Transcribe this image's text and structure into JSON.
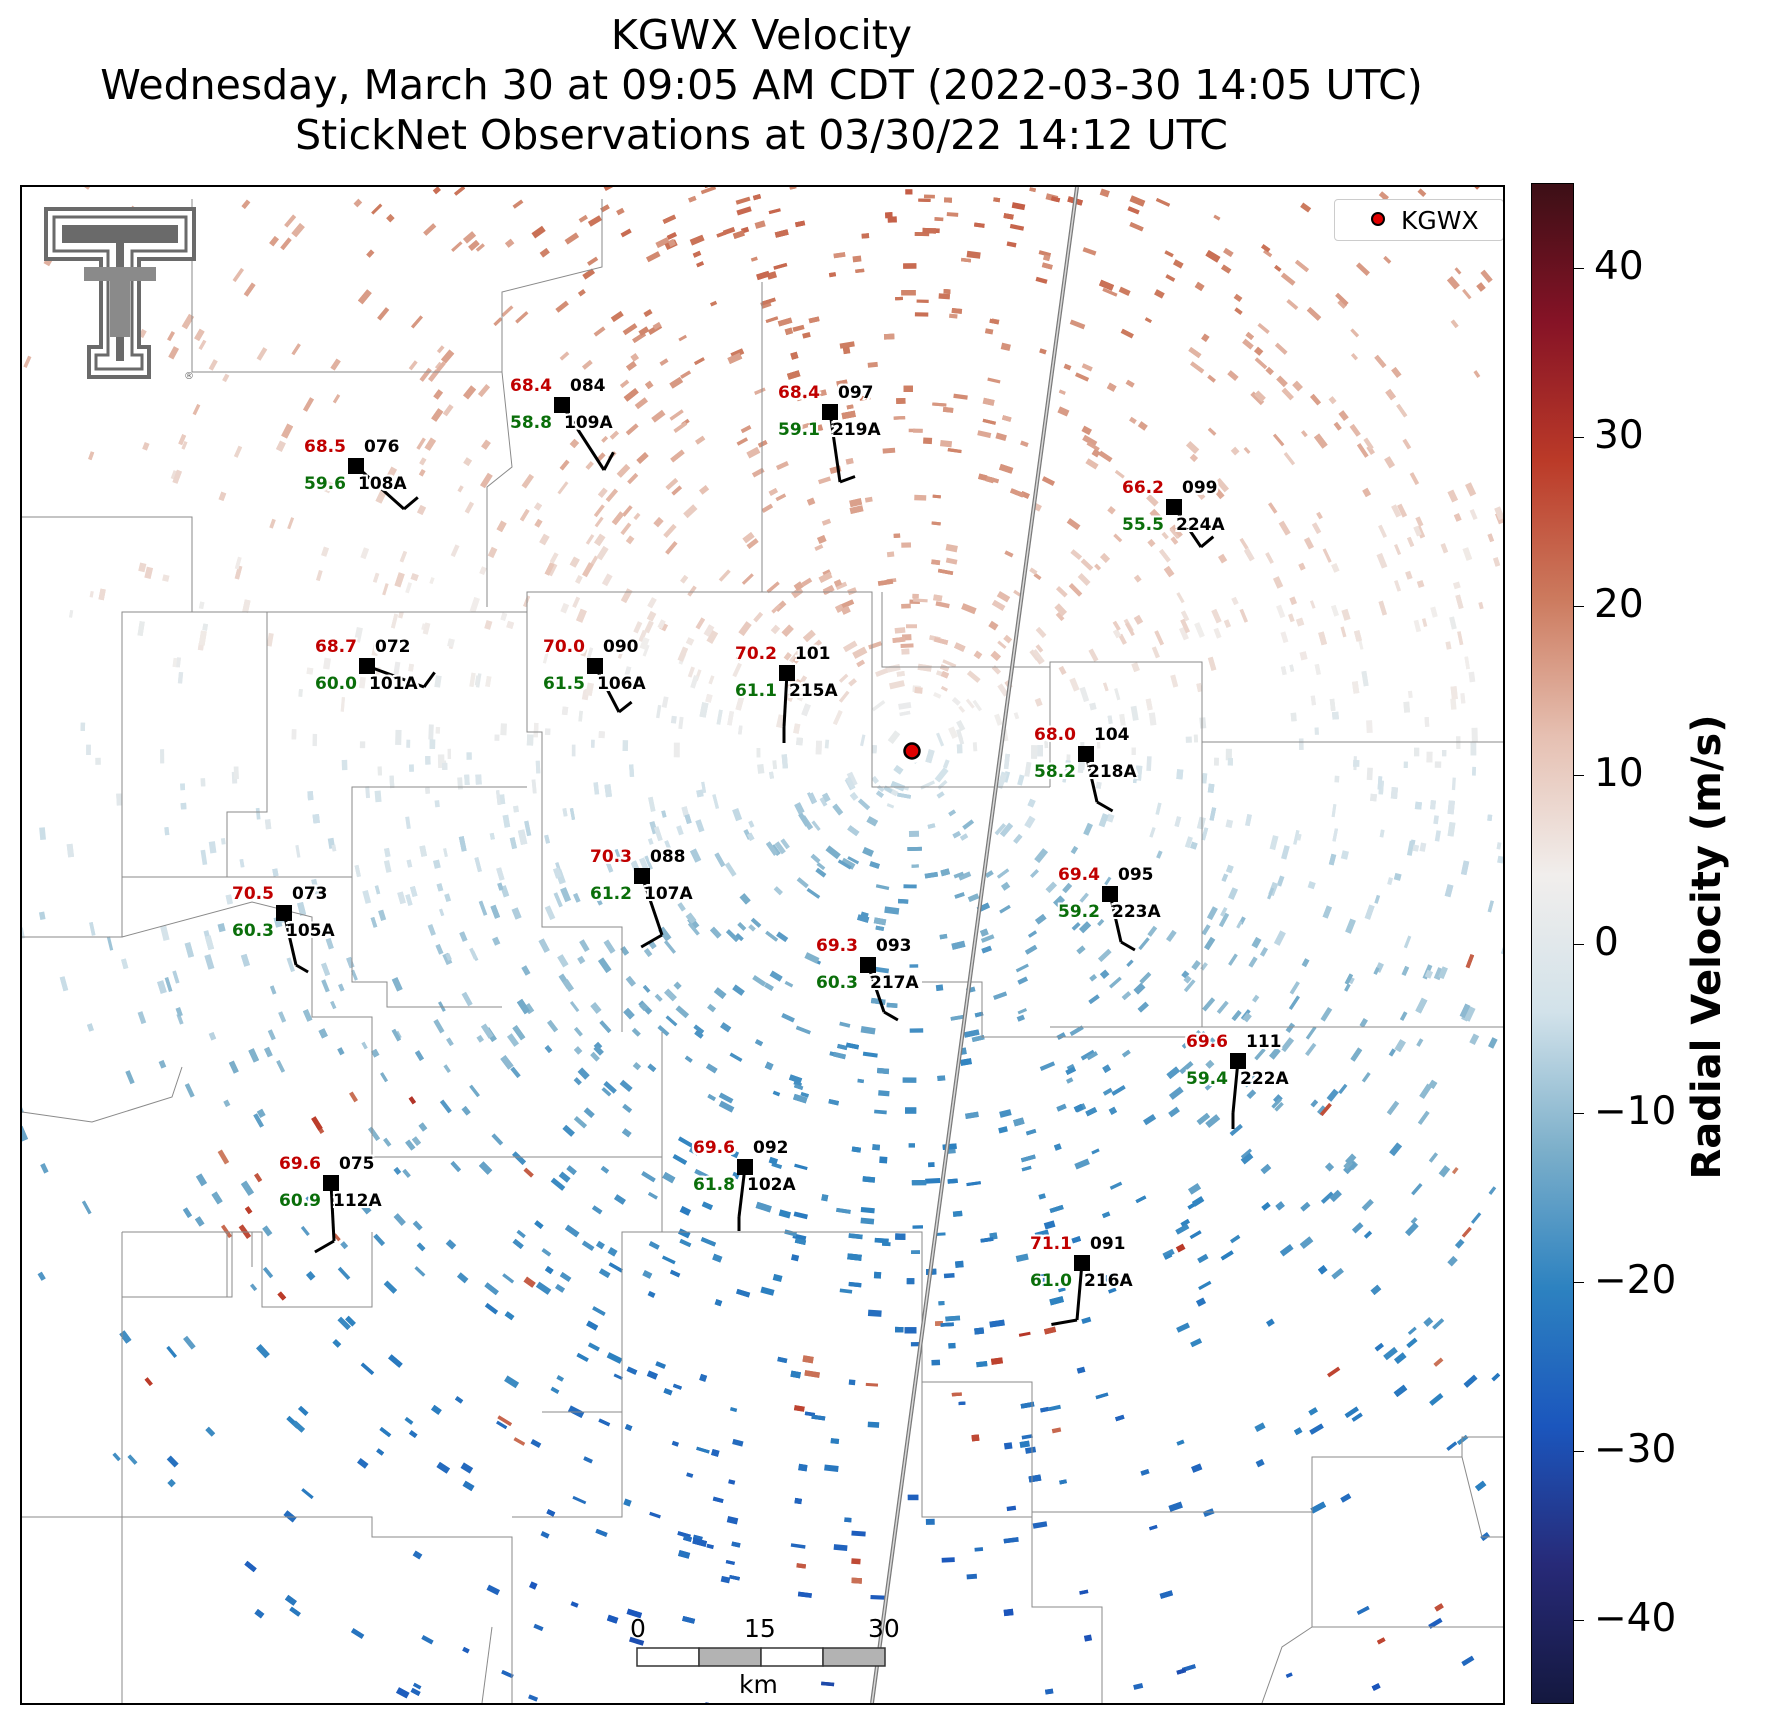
{
  "title": {
    "line1": "KGWX Velocity",
    "line2": "Wednesday, March 30 at 09:05 AM CDT (2022-03-30 14:05 UTC)",
    "line3": "StickNet Observations at 03/30/22 14:12 UTC"
  },
  "logo": {
    "name": "Texas Tech double-T logo"
  },
  "legend": {
    "label": "KGWX",
    "marker_color": "#e00000"
  },
  "radar": {
    "name": "KGWX",
    "marker_color": "#e00000"
  },
  "colorbar": {
    "title": "Radial Velocity (m/s)",
    "range": [
      -45,
      45
    ],
    "ticks": [
      "40",
      "30",
      "20",
      "10",
      "0",
      "−10",
      "−20",
      "−30",
      "−40"
    ],
    "tick_values": [
      40,
      30,
      20,
      10,
      0,
      -10,
      -20,
      -30,
      -40
    ],
    "colors": [
      "#14183f",
      "#272a78",
      "#1b56bd",
      "#2d82c0",
      "#7cafca",
      "#d2e2ea",
      "#f1eeec",
      "#e6c0b2",
      "#cc7a5e",
      "#bb3a28",
      "#861326",
      "#3c0f16"
    ]
  },
  "scale_bar": {
    "labels": [
      "0",
      "15",
      "30"
    ],
    "unit": "km"
  },
  "stations": [
    {
      "temp": "68.4",
      "dew": "58.8",
      "id": "084",
      "probe": "109A"
    },
    {
      "temp": "68.4",
      "dew": "59.1",
      "id": "097",
      "probe": "219A"
    },
    {
      "temp": "68.5",
      "dew": "59.6",
      "id": "076",
      "probe": "108A"
    },
    {
      "temp": "66.2",
      "dew": "55.5",
      "id": "099",
      "probe": "224A"
    },
    {
      "temp": "68.7",
      "dew": "60.0",
      "id": "072",
      "probe": "101A"
    },
    {
      "temp": "70.0",
      "dew": "61.5",
      "id": "090",
      "probe": "106A"
    },
    {
      "temp": "70.2",
      "dew": "61.1",
      "id": "101",
      "probe": "215A"
    },
    {
      "temp": "68.0",
      "dew": "58.2",
      "id": "104",
      "probe": "218A"
    },
    {
      "temp": "70.3",
      "dew": "61.2",
      "id": "088",
      "probe": "107A"
    },
    {
      "temp": "69.4",
      "dew": "59.2",
      "id": "095",
      "probe": "223A"
    },
    {
      "temp": "70.5",
      "dew": "60.3",
      "id": "073",
      "probe": "105A"
    },
    {
      "temp": "69.3",
      "dew": "60.3",
      "id": "093",
      "probe": "217A"
    },
    {
      "temp": "69.6",
      "dew": "59.4",
      "id": "111",
      "probe": "222A"
    },
    {
      "temp": "69.6",
      "dew": "61.8",
      "id": "092",
      "probe": "102A"
    },
    {
      "temp": "69.6",
      "dew": "60.9",
      "id": "075",
      "probe": "112A"
    },
    {
      "temp": "71.1",
      "dew": "61.0",
      "id": "091",
      "probe": "216A"
    }
  ]
}
